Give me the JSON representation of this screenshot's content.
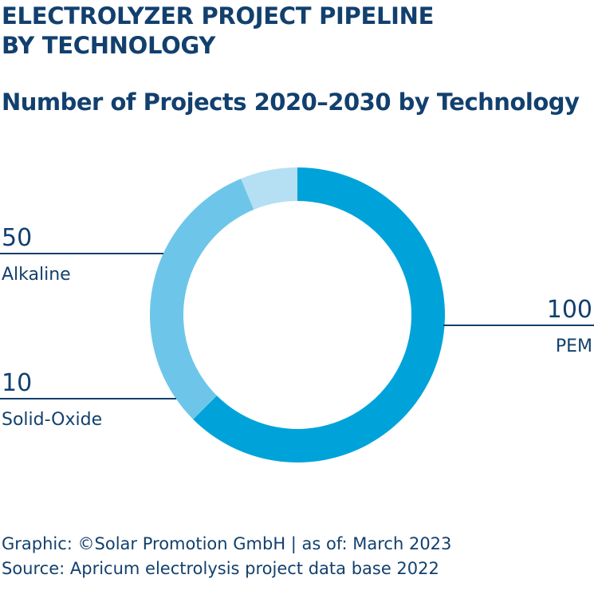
{
  "header": {
    "title": "ELECTROLYZER  PROJECT PIPELINE\nBY TECHNOLOGY",
    "subtitle": "Number of Projects 2020–2030 by Technology"
  },
  "chart_data": {
    "type": "pie",
    "title": "Number of Projects 2020–2030 by Technology",
    "donut": true,
    "categories": [
      "PEM",
      "Alkaline",
      "Solid-Oxide"
    ],
    "values": [
      100,
      50,
      10
    ],
    "colors": [
      "#00a3d9",
      "#6dc6e9",
      "#b5dff3"
    ],
    "start_angle_deg": 0,
    "direction": "clockwise",
    "label_text_color": "#12406e",
    "leader_color": "#12406e"
  },
  "footer": {
    "credit": "Graphic: ©Solar Promotion GmbH | as of: March 2023",
    "source": "Source: Apricum electrolysis project data base 2022"
  }
}
